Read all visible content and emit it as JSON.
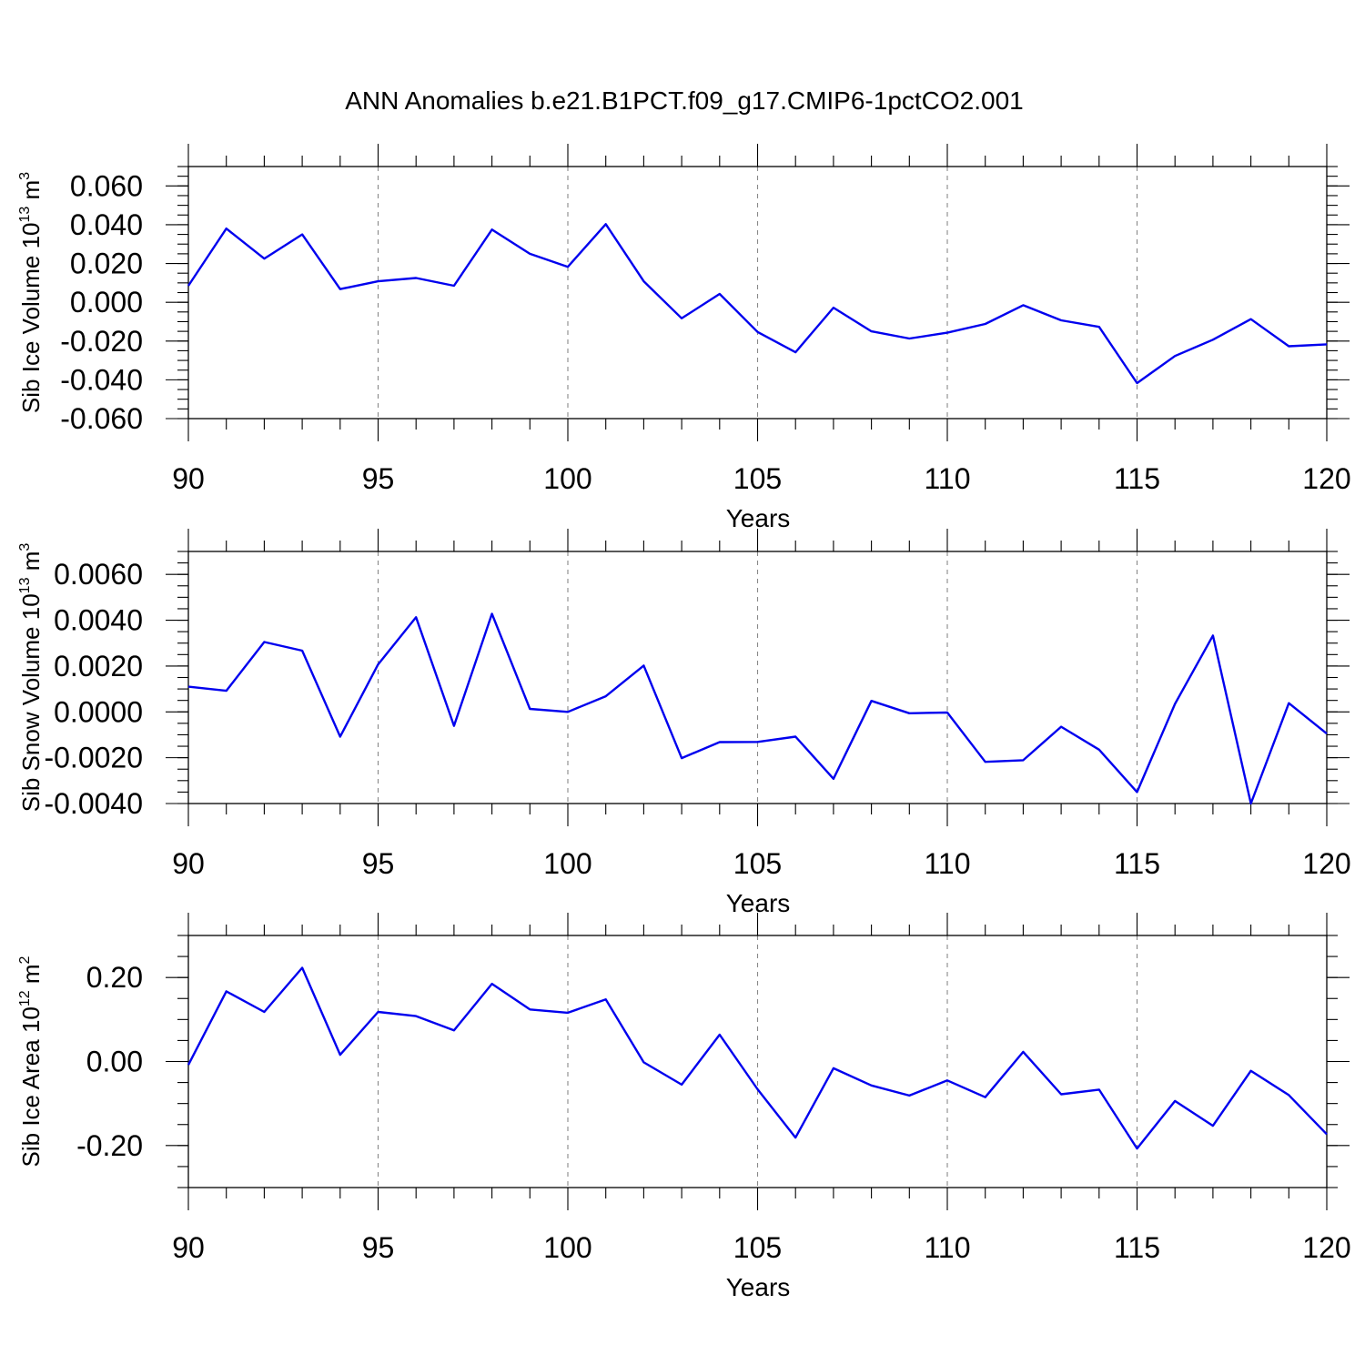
{
  "title": "ANN Anomalies b.e21.B1PCT.f09_g17.CMIP6-1pctCO2.001",
  "colors": {
    "line": "#0000ee",
    "grid": "#888888",
    "axis": "#000000"
  },
  "chart_data": [
    {
      "type": "line",
      "ylabel_base": "Sib Ice Volume 10",
      "ylabel_exp": "13",
      "ylabel_unit": " m",
      "ylabel_unit_exp": "3",
      "xlabel": "Years",
      "xlim": [
        90,
        120
      ],
      "ylim": [
        -0.06,
        0.07
      ],
      "yticks": [
        -0.06,
        -0.04,
        -0.02,
        0.0,
        0.02,
        0.04,
        0.06
      ],
      "ytick_labels": [
        "-0.060",
        "-0.040",
        "-0.020",
        "0.000",
        "0.020",
        "0.040",
        "0.060"
      ],
      "yminor_step": 0.005,
      "xticks": [
        90,
        95,
        100,
        105,
        110,
        115,
        120
      ],
      "xtick_labels": [
        "90",
        "95",
        "100",
        "105",
        "110",
        "115",
        "120"
      ],
      "xgrid": [
        95,
        100,
        105,
        110,
        115
      ],
      "x": [
        90,
        91,
        92,
        93,
        94,
        95,
        96,
        97,
        98,
        99,
        100,
        101,
        102,
        103,
        104,
        105,
        106,
        107,
        108,
        109,
        110,
        111,
        112,
        113,
        114,
        115,
        116,
        117,
        118,
        119,
        120
      ],
      "y": [
        0.0085,
        0.038,
        0.0225,
        0.035,
        0.0068,
        0.0108,
        0.0125,
        0.0085,
        0.0375,
        0.025,
        0.0183,
        0.0403,
        0.0108,
        -0.0083,
        0.0043,
        -0.0153,
        -0.0258,
        -0.0028,
        -0.015,
        -0.0187,
        -0.0157,
        -0.0112,
        -0.0015,
        -0.0093,
        -0.0127,
        -0.0417,
        -0.0277,
        -0.0193,
        -0.0087,
        -0.0227,
        -0.0217
      ]
    },
    {
      "type": "line",
      "ylabel_base": "Sib Snow Volume 10",
      "ylabel_exp": "13",
      "ylabel_unit": " m",
      "ylabel_unit_exp": "3",
      "xlabel": "Years",
      "xlim": [
        90,
        120
      ],
      "ylim": [
        -0.004,
        0.007
      ],
      "yticks": [
        -0.004,
        -0.002,
        0.0,
        0.002,
        0.004,
        0.006
      ],
      "ytick_labels": [
        "-0.0040",
        "-0.0020",
        "0.0000",
        "0.0020",
        "0.0040",
        "0.0060"
      ],
      "yminor_step": 0.0005,
      "xticks": [
        90,
        95,
        100,
        105,
        110,
        115,
        120
      ],
      "xtick_labels": [
        "90",
        "95",
        "100",
        "105",
        "110",
        "115",
        "120"
      ],
      "xgrid": [
        95,
        100,
        105,
        110,
        115
      ],
      "x": [
        90,
        91,
        92,
        93,
        94,
        95,
        96,
        97,
        98,
        99,
        100,
        101,
        102,
        103,
        104,
        105,
        106,
        107,
        108,
        109,
        110,
        111,
        112,
        113,
        114,
        115,
        116,
        117,
        118,
        119,
        120
      ],
      "y": [
        0.0011,
        0.00092,
        0.00305,
        0.00267,
        -0.00108,
        0.00207,
        0.00413,
        -0.00061,
        0.00428,
        0.00013,
        0.0,
        0.00068,
        0.00202,
        -0.00202,
        -0.00132,
        -0.00131,
        -0.00108,
        -0.00292,
        0.00048,
        -6e-05,
        -3e-05,
        -0.00218,
        -0.00211,
        -0.00065,
        -0.00165,
        -0.0035,
        0.00035,
        0.00333,
        -0.004,
        0.00038,
        -0.00095
      ]
    },
    {
      "type": "line",
      "ylabel_base": "Sib Ice Area 10",
      "ylabel_exp": "12",
      "ylabel_unit": " m",
      "ylabel_unit_exp": "2",
      "xlabel": "Years",
      "xlim": [
        90,
        120
      ],
      "ylim": [
        -0.3,
        0.3
      ],
      "yticks": [
        -0.2,
        0.0,
        0.2
      ],
      "ytick_labels": [
        "-0.20",
        "0.00",
        "0.20"
      ],
      "yminor_step": 0.05,
      "xticks": [
        90,
        95,
        100,
        105,
        110,
        115,
        120
      ],
      "xtick_labels": [
        "90",
        "95",
        "100",
        "105",
        "110",
        "115",
        "120"
      ],
      "xgrid": [
        95,
        100,
        105,
        110,
        115
      ],
      "x": [
        90,
        91,
        92,
        93,
        94,
        95,
        96,
        97,
        98,
        99,
        100,
        101,
        102,
        103,
        104,
        105,
        106,
        107,
        108,
        109,
        110,
        111,
        112,
        113,
        114,
        115,
        116,
        117,
        118,
        119,
        120
      ],
      "y": [
        -0.008,
        0.167,
        0.118,
        0.223,
        0.016,
        0.118,
        0.108,
        0.074,
        0.185,
        0.124,
        0.116,
        0.148,
        -0.002,
        -0.055,
        0.064,
        -0.066,
        -0.181,
        -0.016,
        -0.057,
        -0.081,
        -0.045,
        -0.085,
        0.023,
        -0.078,
        -0.067,
        -0.207,
        -0.094,
        -0.153,
        -0.022,
        -0.08,
        -0.173
      ]
    }
  ]
}
